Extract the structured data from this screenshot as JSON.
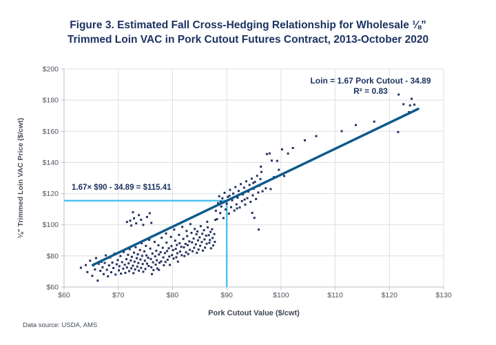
{
  "title": {
    "line1": "Figure 3. Estimated Fall Cross-Hedging Relationship for Wholesale ⅛”",
    "line2": "Trimmed Loin VAC in Pork Cutout Futures Contract, 2013-October 2020"
  },
  "annotations": {
    "equation_line1": "Loin = 1.67 Pork Cutout - 34.89",
    "equation_line2": "R² = 0.83",
    "hedge_calc": "1.67× $90 - 34.89 = $115.41"
  },
  "footer": {
    "source": "Data source: USDA, AMS"
  },
  "colors": {
    "title_navy": "#1c3361",
    "point": "#242f60",
    "trend_line": "#0e5a8c",
    "hedge_line": "#4cc2f1",
    "grid": "#dcdee1",
    "axis": "#b9bec5",
    "tick_text": "#4d545e"
  },
  "chart_data": {
    "type": "scatter",
    "title": "Estimated Fall Cross-Hedging Relationship, Loin VAC vs Pork Cutout",
    "xlabel": "Pork Cutout Value ($/cwt)",
    "ylabel": "⅛\" Trimmed Loin VAC Price ($/cwt)",
    "xlim": [
      60,
      130
    ],
    "ylim": [
      60,
      200
    ],
    "grid": true,
    "x_tick_values": [
      60,
      70,
      80,
      90,
      100,
      110,
      120,
      130
    ],
    "x_tick_labels": [
      "$60",
      "$70",
      "$80",
      "$90",
      "$100",
      "$110",
      "$120",
      "$130"
    ],
    "y_tick_values": [
      60,
      80,
      100,
      120,
      140,
      160,
      180,
      200
    ],
    "y_tick_labels": [
      "$60",
      "$80",
      "$100",
      "$120",
      "$140",
      "$160",
      "$180",
      "$200"
    ],
    "trend_line": {
      "slope": 1.67,
      "intercept": -34.89,
      "x_start": 65.3,
      "x_end": 125.3,
      "equation": "Loin = 1.67 Pork Cutout - 34.89",
      "r_squared": 0.83
    },
    "hedge_lines": {
      "x": 90,
      "y": 115.41,
      "result_text": "1.67× $90 - 34.89 = $115.41"
    },
    "points": [
      [
        63.1,
        72.4
      ],
      [
        64.0,
        74.1
      ],
      [
        64.3,
        69.6
      ],
      [
        64.8,
        76.9
      ],
      [
        65.2,
        67.2
      ],
      [
        65.4,
        73.9
      ],
      [
        65.7,
        71.3
      ],
      [
        65.9,
        78.6
      ],
      [
        66.2,
        64.1
      ],
      [
        66.4,
        74.9
      ],
      [
        66.7,
        70.4
      ],
      [
        66.9,
        76.2
      ],
      [
        67.1,
        72.7
      ],
      [
        67.3,
        68.3
      ],
      [
        67.5,
        75.5
      ],
      [
        67.7,
        80.3
      ],
      [
        67.9,
        71.1
      ],
      [
        68.1,
        66.9
      ],
      [
        68.3,
        73.9
      ],
      [
        68.5,
        79.0
      ],
      [
        68.7,
        69.5
      ],
      [
        68.9,
        75.7
      ],
      [
        69.1,
        72.2
      ],
      [
        69.3,
        81.4
      ],
      [
        69.5,
        68.0
      ],
      [
        69.7,
        74.6
      ],
      [
        69.9,
        77.3
      ],
      [
        70.1,
        70.7
      ],
      [
        70.2,
        73.4
      ],
      [
        70.4,
        79.9
      ],
      [
        70.5,
        68.6
      ],
      [
        70.7,
        76.0
      ],
      [
        70.9,
        71.8
      ],
      [
        71.0,
        82.5
      ],
      [
        71.2,
        74.3
      ],
      [
        71.3,
        69.1
      ],
      [
        71.5,
        77.9
      ],
      [
        71.6,
        72.6
      ],
      [
        71.8,
        80.7
      ],
      [
        71.9,
        75.2
      ],
      [
        72.0,
        70.2
      ],
      [
        72.1,
        84.3
      ],
      [
        72.3,
        77.0
      ],
      [
        72.4,
        72.0
      ],
      [
        72.5,
        79.4
      ],
      [
        72.7,
        73.7
      ],
      [
        72.8,
        68.9
      ],
      [
        72.9,
        82.1
      ],
      [
        73.0,
        76.3
      ],
      [
        73.1,
        71.3
      ],
      [
        73.2,
        85.6
      ],
      [
        73.4,
        78.5
      ],
      [
        73.5,
        73.1
      ],
      [
        73.6,
        81.0
      ],
      [
        73.7,
        75.4
      ],
      [
        73.8,
        70.5
      ],
      [
        74.0,
        83.8
      ],
      [
        74.1,
        77.7
      ],
      [
        74.2,
        72.3
      ],
      [
        74.3,
        88.2
      ],
      [
        74.4,
        80.0
      ],
      [
        74.5,
        74.8
      ],
      [
        74.6,
        69.8
      ],
      [
        74.8,
        82.9
      ],
      [
        74.9,
        76.9
      ],
      [
        75.0,
        71.6
      ],
      [
        75.1,
        86.4
      ],
      [
        75.2,
        80.3
      ],
      [
        75.3,
        75.0
      ],
      [
        75.5,
        78.8
      ],
      [
        75.6,
        73.5
      ],
      [
        75.7,
        90.3
      ],
      [
        75.9,
        84.7
      ],
      [
        76.0,
        78.0
      ],
      [
        76.1,
        72.7
      ],
      [
        76.3,
        81.5
      ],
      [
        76.4,
        75.9
      ],
      [
        76.5,
        70.9
      ],
      [
        76.7,
        89.0
      ],
      [
        76.8,
        79.7
      ],
      [
        76.9,
        74.4
      ],
      [
        77.0,
        83.3
      ],
      [
        77.1,
        77.2
      ],
      [
        77.2,
        71.9
      ],
      [
        77.4,
        86.8
      ],
      [
        77.5,
        80.9
      ],
      [
        77.6,
        75.6
      ],
      [
        77.8,
        82.4
      ],
      [
        77.9,
        76.5
      ],
      [
        78.0,
        91.6
      ],
      [
        78.2,
        85.2
      ],
      [
        78.3,
        79.0
      ],
      [
        78.4,
        74.0
      ],
      [
        78.6,
        81.8
      ],
      [
        78.7,
        76.1
      ],
      [
        78.8,
        94.4
      ],
      [
        78.9,
        88.5
      ],
      [
        79.0,
        83.1
      ],
      [
        79.1,
        77.5
      ],
      [
        79.3,
        84.9
      ],
      [
        79.4,
        79.6
      ],
      [
        79.5,
        74.2
      ],
      [
        79.7,
        92.2
      ],
      [
        79.8,
        86.3
      ],
      [
        79.9,
        80.5
      ],
      [
        80.1,
        83.7
      ],
      [
        80.2,
        78.3
      ],
      [
        80.3,
        96.9
      ],
      [
        80.5,
        89.8
      ],
      [
        80.6,
        84.5
      ],
      [
        80.7,
        79.1
      ],
      [
        80.8,
        87.0
      ],
      [
        80.9,
        81.7
      ],
      [
        81.0,
        76.3
      ],
      [
        81.2,
        93.5
      ],
      [
        81.3,
        88.1
      ],
      [
        81.4,
        82.8
      ],
      [
        81.6,
        85.8
      ],
      [
        81.7,
        80.4
      ],
      [
        81.8,
        98.6
      ],
      [
        82.0,
        90.9
      ],
      [
        82.1,
        85.5
      ],
      [
        82.2,
        79.9
      ],
      [
        82.4,
        87.7
      ],
      [
        82.5,
        82.3
      ],
      [
        82.6,
        96.0
      ],
      [
        82.7,
        92.7
      ],
      [
        82.8,
        86.9
      ],
      [
        82.9,
        81.2
      ],
      [
        83.1,
        89.3
      ],
      [
        83.2,
        83.9
      ],
      [
        83.3,
        100.4
      ],
      [
        83.5,
        94.8
      ],
      [
        83.6,
        88.7
      ],
      [
        83.7,
        83.0
      ],
      [
        83.9,
        91.1
      ],
      [
        84.0,
        85.2
      ],
      [
        84.1,
        97.3
      ],
      [
        84.3,
        87.4
      ],
      [
        84.4,
        93.9
      ],
      [
        84.5,
        82.0
      ],
      [
        84.6,
        95.7
      ],
      [
        84.7,
        90.0
      ],
      [
        84.8,
        84.1
      ],
      [
        85.0,
        91.9
      ],
      [
        85.1,
        86.5
      ],
      [
        85.2,
        99.1
      ],
      [
        85.4,
        88.9
      ],
      [
        85.5,
        94.2
      ],
      [
        85.6,
        83.4
      ],
      [
        85.8,
        96.5
      ],
      [
        85.9,
        90.6
      ],
      [
        86.0,
        85.3
      ],
      [
        86.2,
        93.0
      ],
      [
        86.3,
        87.8
      ],
      [
        86.4,
        101.9
      ],
      [
        86.5,
        98.3
      ],
      [
        86.7,
        93.3
      ],
      [
        86.8,
        88.4
      ],
      [
        86.9,
        90.2
      ],
      [
        87.0,
        95.4
      ],
      [
        87.1,
        84.9
      ],
      [
        87.3,
        97.1
      ],
      [
        87.4,
        91.5
      ],
      [
        87.5,
        86.7
      ],
      [
        87.7,
        94.0
      ],
      [
        87.8,
        89.0
      ],
      [
        87.9,
        103.1
      ],
      [
        71.6,
        101.8
      ],
      [
        72.2,
        102.6
      ],
      [
        72.4,
        99.5
      ],
      [
        72.9,
        104.1
      ],
      [
        73.3,
        100.9
      ],
      [
        73.8,
        106.2
      ],
      [
        74.2,
        103.2
      ],
      [
        74.6,
        99.9
      ],
      [
        75.3,
        105.0
      ],
      [
        76.1,
        101.2
      ],
      [
        72.7,
        108.0
      ],
      [
        75.8,
        107.4
      ],
      [
        76.2,
        68.3
      ],
      [
        77.5,
        71.0
      ],
      [
        88.0,
        109.0
      ],
      [
        88.2,
        103.6
      ],
      [
        88.4,
        113.9
      ],
      [
        88.6,
        118.3
      ],
      [
        88.8,
        107.5
      ],
      [
        89.0,
        111.7
      ],
      [
        89.2,
        117.0
      ],
      [
        89.4,
        104.3
      ],
      [
        89.6,
        120.5
      ],
      [
        89.8,
        109.8
      ],
      [
        90.0,
        113.5
      ],
      [
        90.2,
        117.9
      ],
      [
        90.4,
        107.1
      ],
      [
        90.6,
        122.4
      ],
      [
        90.8,
        111.3
      ],
      [
        91.0,
        115.7
      ],
      [
        91.2,
        120.0
      ],
      [
        91.4,
        109.1
      ],
      [
        91.6,
        124.2
      ],
      [
        91.8,
        113.1
      ],
      [
        92.0,
        117.4
      ],
      [
        92.2,
        121.7
      ],
      [
        92.4,
        111.1
      ],
      [
        92.6,
        126.1
      ],
      [
        92.8,
        115.2
      ],
      [
        93.0,
        119.5
      ],
      [
        93.2,
        123.8
      ],
      [
        93.4,
        112.9
      ],
      [
        93.6,
        127.9
      ],
      [
        93.8,
        117.1
      ],
      [
        94.0,
        121.3
      ],
      [
        94.2,
        125.6
      ],
      [
        94.4,
        114.7
      ],
      [
        94.6,
        129.6
      ],
      [
        94.8,
        118.9
      ],
      [
        95.0,
        123.2
      ],
      [
        95.2,
        127.5
      ],
      [
        95.4,
        116.5
      ],
      [
        95.6,
        131.4
      ],
      [
        95.8,
        120.7
      ],
      [
        96.0,
        125.0
      ],
      [
        96.2,
        129.3
      ],
      [
        96.4,
        133.9
      ],
      [
        96.6,
        121.5
      ],
      [
        88.9,
        114.8
      ],
      [
        90.5,
        118.6
      ],
      [
        91.9,
        110.5
      ],
      [
        93.3,
        116.2
      ],
      [
        94.9,
        126.8
      ],
      [
        95.9,
        96.9
      ],
      [
        95.1,
        104.4
      ],
      [
        94.7,
        107.6
      ],
      [
        96.3,
        137.3
      ],
      [
        97.2,
        123.4
      ],
      [
        97.4,
        145.4
      ],
      [
        97.9,
        145.8
      ],
      [
        98.1,
        122.9
      ],
      [
        98.3,
        141.2
      ],
      [
        98.7,
        130.6
      ],
      [
        99.3,
        141.0
      ],
      [
        99.6,
        135.3
      ],
      [
        100.2,
        148.4
      ],
      [
        100.6,
        131.3
      ],
      [
        101.3,
        145.7
      ],
      [
        102.2,
        149.3
      ],
      [
        104.4,
        154.2
      ],
      [
        106.5,
        156.9
      ],
      [
        111.2,
        160.1
      ],
      [
        113.8,
        164.0
      ],
      [
        117.2,
        166.2
      ],
      [
        121.6,
        159.5
      ],
      [
        121.7,
        183.6
      ],
      [
        122.6,
        177.4
      ],
      [
        122.9,
        170.5
      ],
      [
        123.6,
        172.3
      ],
      [
        123.8,
        176.6
      ],
      [
        124.6,
        177.1
      ],
      [
        124.1,
        180.9
      ]
    ]
  }
}
